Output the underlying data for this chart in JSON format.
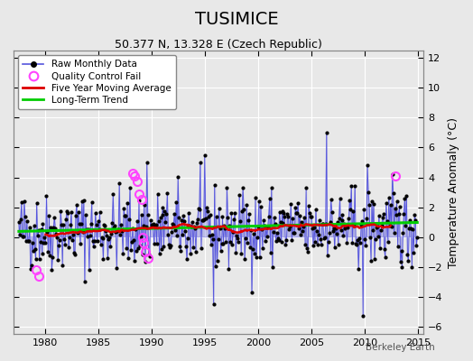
{
  "title": "TUSIMICE",
  "subtitle": "50.377 N, 13.328 E (Czech Republic)",
  "ylabel": "Temperature Anomaly (°C)",
  "watermark": "Berkeley Earth",
  "xlim": [
    1977.0,
    2015.5
  ],
  "ylim": [
    -6.5,
    12.5
  ],
  "yticks": [
    -6,
    -4,
    -2,
    0,
    2,
    4,
    6,
    8,
    10,
    12
  ],
  "xticks": [
    1980,
    1985,
    1990,
    1995,
    2000,
    2005,
    2010,
    2015
  ],
  "bg_color": "#e8e8e8",
  "plot_bg_color": "#e8e8e8",
  "raw_color": "#5555dd",
  "raw_marker_color": "#000000",
  "ma_color": "#dd0000",
  "trend_color": "#00cc00",
  "qc_color": "#ff44ff",
  "title_fontsize": 14,
  "subtitle_fontsize": 9,
  "tick_fontsize": 8,
  "ylabel_fontsize": 9
}
